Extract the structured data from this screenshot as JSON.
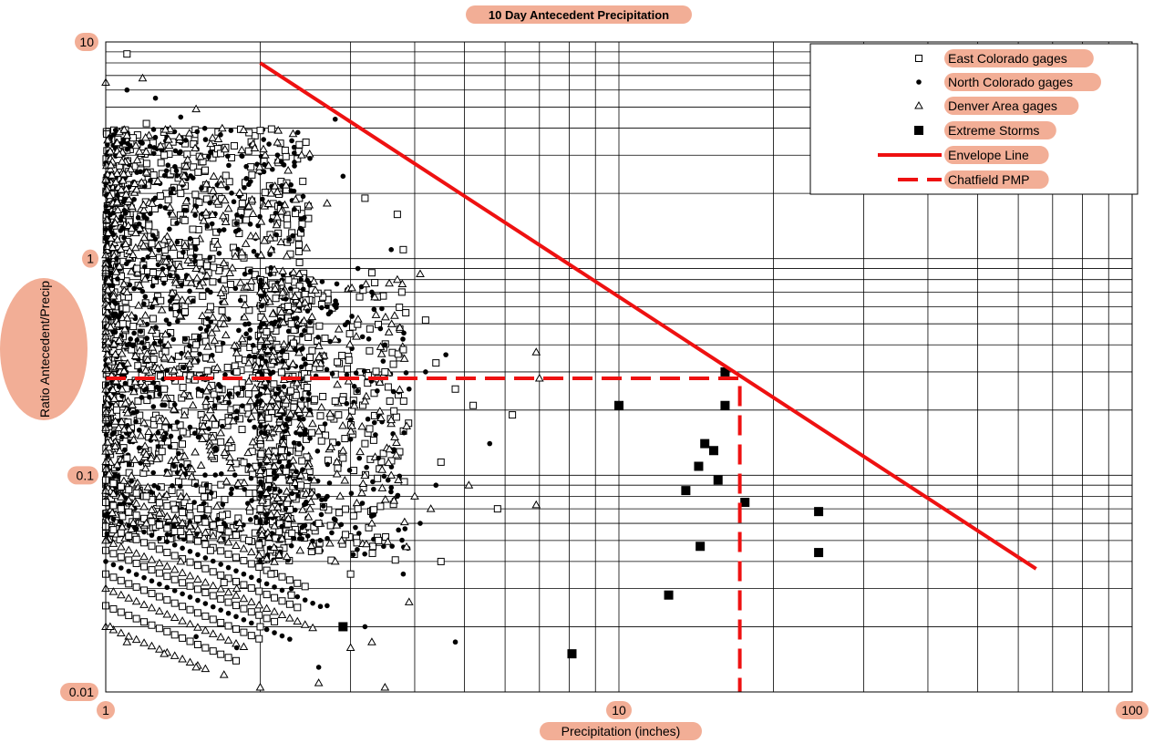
{
  "chart_data": {
    "type": "scatter",
    "title": "10 Day Antecedent Precipitation",
    "xlabel": "Precipitation (inches)",
    "ylabel": "Ratio Antecedent/Precip",
    "xscale": "log",
    "yscale": "log",
    "xlim": [
      1,
      100
    ],
    "ylim": [
      0.01,
      10
    ],
    "x_ticks": [
      "1",
      "10",
      "100"
    ],
    "y_ticks": [
      "0.01",
      "0.1",
      "1",
      "10"
    ],
    "grid": true,
    "legend_position": "top-right",
    "colors": {
      "envelope": "#ee1111",
      "pmp": "#ee1111",
      "markers": "#000000",
      "label_highlight": "#f2ae96"
    },
    "series": [
      {
        "name": "East Colorado gages",
        "marker": "open-square",
        "points": [
          [
            1.1,
            8.8
          ],
          [
            2.0,
            3.9
          ],
          [
            3.2,
            1.9
          ],
          [
            3.7,
            1.6
          ],
          [
            3.8,
            1.1
          ],
          [
            4.2,
            0.52
          ],
          [
            3.3,
            0.86
          ],
          [
            4.4,
            0.33
          ],
          [
            4.8,
            0.25
          ],
          [
            5.2,
            0.21
          ],
          [
            5.8,
            0.07
          ],
          [
            6.2,
            0.19
          ],
          [
            4.5,
            0.115
          ],
          [
            4.5,
            0.04
          ],
          [
            3.8,
            0.38
          ],
          [
            3.5,
            0.3
          ],
          [
            3.2,
            0.14
          ],
          [
            2.8,
            0.22
          ],
          [
            2.5,
            0.35
          ],
          [
            2.3,
            0.5
          ],
          [
            2.2,
            0.13
          ],
          [
            2.9,
            0.12
          ],
          [
            3.1,
            0.07
          ],
          [
            2.6,
            0.06
          ],
          [
            2.4,
            0.09
          ],
          [
            1.8,
            0.3
          ],
          [
            1.6,
            0.6
          ],
          [
            1.5,
            1.2
          ],
          [
            1.4,
            2.0
          ],
          [
            1.3,
            3.0
          ],
          [
            1.2,
            4.2
          ],
          [
            1.9,
            0.05
          ],
          [
            2.1,
            0.035
          ],
          [
            2.3,
            0.028
          ],
          [
            2.0,
            0.02
          ],
          [
            1.7,
            0.032
          ],
          [
            1.6,
            0.045
          ],
          [
            1.4,
            0.055
          ],
          [
            1.2,
            0.08
          ],
          [
            1.1,
            0.12
          ],
          [
            1.05,
            0.2
          ],
          [
            1.08,
            0.5
          ],
          [
            1.15,
            0.9
          ],
          [
            1.3,
            0.25
          ],
          [
            1.5,
            0.4
          ],
          [
            1.7,
            0.8
          ],
          [
            2.0,
            0.07
          ],
          [
            2.6,
            0.045
          ],
          [
            3.0,
            0.035
          ],
          [
            3.4,
            0.05
          ]
        ]
      },
      {
        "name": "North Colorado gages",
        "marker": "filled-circle",
        "points": [
          [
            2.8,
            4.4
          ],
          [
            2.5,
            2.9
          ],
          [
            2.2,
            2.8
          ],
          [
            2.9,
            2.4
          ],
          [
            3.6,
            1.1
          ],
          [
            3.1,
            0.9
          ],
          [
            3.3,
            0.7
          ],
          [
            4.6,
            0.36
          ],
          [
            4.8,
            0.017
          ],
          [
            3.8,
            0.035
          ],
          [
            5.6,
            0.14
          ],
          [
            4.2,
            0.3
          ],
          [
            3.5,
            0.4
          ],
          [
            3.9,
            0.25
          ],
          [
            2.7,
            0.6
          ],
          [
            2.4,
            0.8
          ],
          [
            2.1,
            1.5
          ],
          [
            1.9,
            2.2
          ],
          [
            1.6,
            3.1
          ],
          [
            1.4,
            4.5
          ],
          [
            1.25,
            5.5
          ],
          [
            1.1,
            6.0
          ],
          [
            1.2,
            0.25
          ],
          [
            1.3,
            0.15
          ],
          [
            1.5,
            0.09
          ],
          [
            1.7,
            0.06
          ],
          [
            2.0,
            0.04
          ],
          [
            2.3,
            0.03
          ],
          [
            2.7,
            0.025
          ],
          [
            3.2,
            0.02
          ],
          [
            1.8,
            0.016
          ],
          [
            1.5,
            0.018
          ],
          [
            2.6,
            0.013
          ],
          [
            3.0,
            0.18
          ],
          [
            3.4,
            0.12
          ],
          [
            3.7,
            0.08
          ],
          [
            4.1,
            0.06
          ],
          [
            4.4,
            0.09
          ],
          [
            2.0,
            0.3
          ],
          [
            2.5,
            0.2
          ],
          [
            1.1,
            0.4
          ],
          [
            1.05,
            1.0
          ],
          [
            1.15,
            2.5
          ],
          [
            1.6,
            0.7
          ],
          [
            1.9,
            0.5
          ]
        ]
      },
      {
        "name": "Denver Area gages",
        "marker": "open-triangle",
        "points": [
          [
            1.0,
            6.5
          ],
          [
            1.18,
            6.8
          ],
          [
            1.5,
            4.9
          ],
          [
            2.1,
            2.0
          ],
          [
            2.7,
            1.8
          ],
          [
            3.7,
            0.8
          ],
          [
            4.1,
            0.85
          ],
          [
            6.9,
            0.37
          ],
          [
            7.0,
            0.28
          ],
          [
            6.9,
            0.073
          ],
          [
            5.1,
            0.09
          ],
          [
            4.0,
            0.08
          ],
          [
            3.9,
            0.026
          ],
          [
            3.6,
            0.1
          ],
          [
            3.3,
            0.06
          ],
          [
            2.8,
            0.04
          ],
          [
            2.6,
            0.011
          ],
          [
            3.5,
            0.0105
          ],
          [
            3.3,
            0.017
          ],
          [
            3.0,
            0.016
          ],
          [
            2.4,
            0.1
          ],
          [
            2.2,
            0.2
          ],
          [
            1.9,
            0.33
          ],
          [
            1.7,
            0.5
          ],
          [
            1.5,
            0.9
          ],
          [
            1.35,
            1.6
          ],
          [
            1.2,
            2.5
          ],
          [
            1.1,
            3.7
          ],
          [
            1.02,
            0.02
          ],
          [
            1.1,
            0.017
          ],
          [
            1.3,
            0.015
          ],
          [
            1.5,
            0.013
          ],
          [
            1.7,
            0.012
          ],
          [
            2.0,
            0.0105
          ],
          [
            1.8,
            0.03
          ],
          [
            1.4,
            0.04
          ],
          [
            1.2,
            0.06
          ],
          [
            2.5,
            0.07
          ],
          [
            2.9,
            0.13
          ],
          [
            3.2,
            0.22
          ],
          [
            3.6,
            0.18
          ],
          [
            4.3,
            0.07
          ],
          [
            1.6,
            0.2
          ],
          [
            1.3,
            0.35
          ],
          [
            1.1,
            0.7
          ]
        ]
      },
      {
        "name": "Extreme Storms",
        "marker": "filled-square",
        "points": [
          [
            16.1,
            0.3
          ],
          [
            16.1,
            0.21
          ],
          [
            10.0,
            0.21
          ],
          [
            14.7,
            0.14
          ],
          [
            15.3,
            0.13
          ],
          [
            14.3,
            0.11
          ],
          [
            15.6,
            0.095
          ],
          [
            13.5,
            0.085
          ],
          [
            17.6,
            0.075
          ],
          [
            24.5,
            0.068
          ],
          [
            24.5,
            0.044
          ],
          [
            14.4,
            0.047
          ],
          [
            12.5,
            0.028
          ],
          [
            8.1,
            0.015
          ],
          [
            2.9,
            0.02
          ]
        ]
      },
      {
        "name": "Envelope Line",
        "style": "solid-line",
        "points": [
          [
            2.0,
            8.0
          ],
          [
            65.0,
            0.037
          ]
        ]
      },
      {
        "name": "Chatfield PMP",
        "style": "dashed-line",
        "points": [
          [
            1.0,
            0.28
          ],
          [
            17.2,
            0.28
          ],
          [
            17.2,
            0.01
          ]
        ]
      }
    ],
    "background_clusters": [
      {
        "marker": "open-square",
        "count": 900,
        "x_range": [
          1.0,
          2.5
        ],
        "y_range": [
          0.05,
          4.0
        ]
      },
      {
        "marker": "filled-circle",
        "count": 700,
        "x_range": [
          1.0,
          2.5
        ],
        "y_range": [
          0.05,
          4.0
        ]
      },
      {
        "marker": "open-triangle",
        "count": 600,
        "x_range": [
          1.0,
          2.5
        ],
        "y_range": [
          0.05,
          4.0
        ]
      },
      {
        "marker": "open-square",
        "count": 300,
        "x_range": [
          2.0,
          3.9
        ],
        "y_range": [
          0.04,
          0.8
        ]
      },
      {
        "marker": "filled-circle",
        "count": 250,
        "x_range": [
          2.0,
          3.9
        ],
        "y_range": [
          0.04,
          0.8
        ]
      },
      {
        "marker": "open-triangle",
        "count": 200,
        "x_range": [
          2.0,
          3.9
        ],
        "y_range": [
          0.04,
          0.8
        ]
      }
    ],
    "streaks": [
      {
        "marker": "open-square",
        "ratio_start": 0.095,
        "precip_end": 2.0
      },
      {
        "marker": "open-triangle",
        "ratio_start": 0.085,
        "precip_end": 2.2
      },
      {
        "marker": "open-square",
        "ratio_start": 0.075,
        "precip_end": 2.5
      },
      {
        "marker": "filled-circle",
        "ratio_start": 0.065,
        "precip_end": 2.7
      },
      {
        "marker": "open-square",
        "ratio_start": 0.058,
        "precip_end": 2.4
      },
      {
        "marker": "open-triangle",
        "ratio_start": 0.05,
        "precip_end": 2.6
      },
      {
        "marker": "open-square",
        "ratio_start": 0.045,
        "precip_end": 2.2
      },
      {
        "marker": "filled-circle",
        "ratio_start": 0.04,
        "precip_end": 2.3
      },
      {
        "marker": "open-square",
        "ratio_start": 0.035,
        "precip_end": 2.0
      },
      {
        "marker": "open-triangle",
        "ratio_start": 0.03,
        "precip_end": 1.9
      },
      {
        "marker": "open-square",
        "ratio_start": 0.025,
        "precip_end": 1.8
      },
      {
        "marker": "open-triangle",
        "ratio_start": 0.02,
        "precip_end": 1.6
      }
    ]
  }
}
